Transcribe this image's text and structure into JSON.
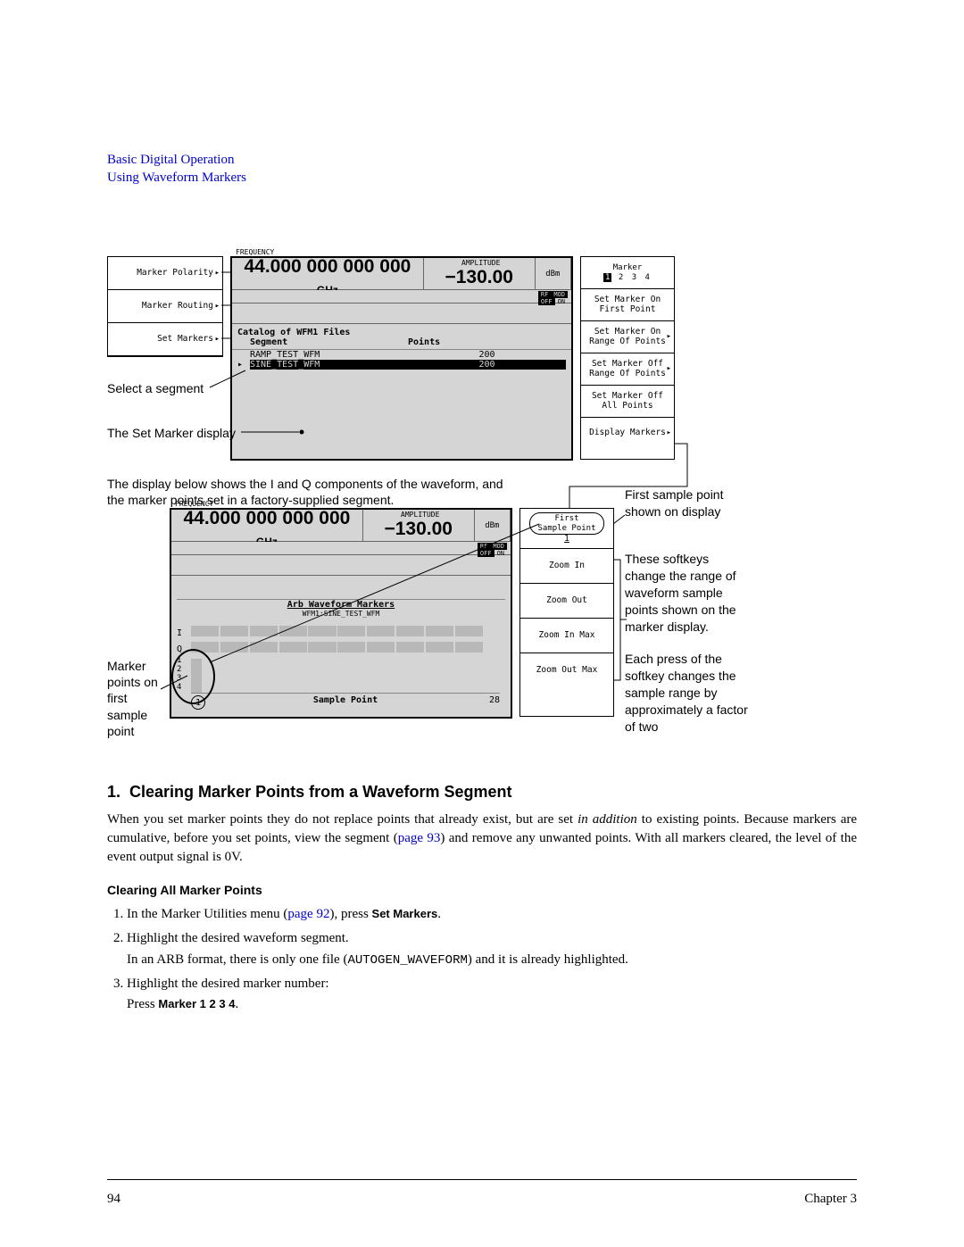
{
  "header": {
    "line1": "Basic Digital Operation",
    "line2": "Using Waveform Markers"
  },
  "top_screen": {
    "freq_label": "FREQUENCY",
    "freq_value": "44.000 000 000 000",
    "freq_unit": "GHz",
    "amp_label": "AMPLITUDE",
    "amp_value": "−130.00",
    "amp_unit": "dBm",
    "indicators": {
      "rf": "RF",
      "off": "OFF",
      "mod": "MOD",
      "on": "ON"
    },
    "catalog_title": "Catalog of WFM1 Files",
    "col1": "Segment",
    "col2": "Points",
    "rows": [
      {
        "name": "RAMP_TEST_WFM",
        "points": "200",
        "selected": false
      },
      {
        "name": "SINE_TEST_WFM",
        "points": "200",
        "selected": true
      }
    ]
  },
  "left_softkeys": [
    "Marker Polarity",
    "Marker Routing",
    "Set Markers"
  ],
  "right_softkeys_top": {
    "marker_label": "Marker",
    "marker_nums": [
      "1",
      "2",
      "3",
      "4"
    ],
    "marker_selected": "1",
    "items": [
      "Set Marker On\nFirst Point",
      "Set Marker On\nRange Of Points",
      "Set Marker Off\nRange Of Points",
      "Set Marker Off\nAll Points",
      "Display Markers"
    ]
  },
  "annotations_top": {
    "select_segment": "Select a segment",
    "set_marker_disp": "The Set Marker display"
  },
  "mid_text": {
    "line1": "The display below shows the I and Q components of the waveform, and",
    "line2": "the marker points set in a factory-supplied segment."
  },
  "bot_screen": {
    "freq_label": "FREQUENCY",
    "freq_value": "44.000 000 000 000",
    "freq_unit": "GHz",
    "amp_label": "AMPLITUDE",
    "amp_value": "−130.00",
    "amp_unit": "dBm",
    "wf_title": "Arb Waveform Markers",
    "wf_sub": "WFM1:SINE_TEST_WFM",
    "row_i": "I",
    "row_q": "Q",
    "nums": [
      "1",
      "2",
      "3",
      "4"
    ],
    "sample_left": "1",
    "sample_mid": "Sample Point",
    "sample_right": "28"
  },
  "right_softkeys_bot": [
    {
      "l1": "First",
      "l2": "Sample Point",
      "l3": "1",
      "boxed": true
    },
    {
      "l1": "Zoom In"
    },
    {
      "l1": "Zoom Out"
    },
    {
      "l1": "Zoom In Max"
    },
    {
      "l1": "Zoom Out Max"
    }
  ],
  "right_callouts": {
    "first_sample": "First sample point shown on display",
    "zoom_desc": "These softkeys change the range of waveform sample points shown on the marker display.",
    "zoom_desc2": "Each press of the softkey changes the sample range by approximately a factor of two"
  },
  "left_callout_bot": "Marker points on first sample point",
  "section": {
    "num": "1.",
    "title": "Clearing Marker Points from a Waveform Segment",
    "para_a": "When you set marker points they do not replace points that already exist, but are set ",
    "para_b": "in addition",
    "para_c": " to existing points. Because markers are cumulative, before you set points, view the segment (",
    "para_d": "page 93",
    "para_e": ") and remove any unwanted points. With all markers cleared, the level of the event output signal is 0V."
  },
  "sub": {
    "title": "Clearing All Marker Points",
    "step1_a": "In the Marker Utilities menu (",
    "step1_b": "page 92",
    "step1_c": "), press ",
    "step1_d": "Set Markers",
    "step1_e": ".",
    "step2_a": "Highlight the desired waveform segment.",
    "step2_b": "In an ARB format, there is only one file (",
    "step2_c": "AUTOGEN_WAVEFORM",
    "step2_d": ") and it is already highlighted.",
    "step3_a": "Highlight the desired marker number:",
    "step3_b": "Press ",
    "step3_c": "Marker 1 2 3 4",
    "step3_d": "."
  },
  "footer": {
    "page": "94",
    "chapter": "Chapter 3"
  }
}
